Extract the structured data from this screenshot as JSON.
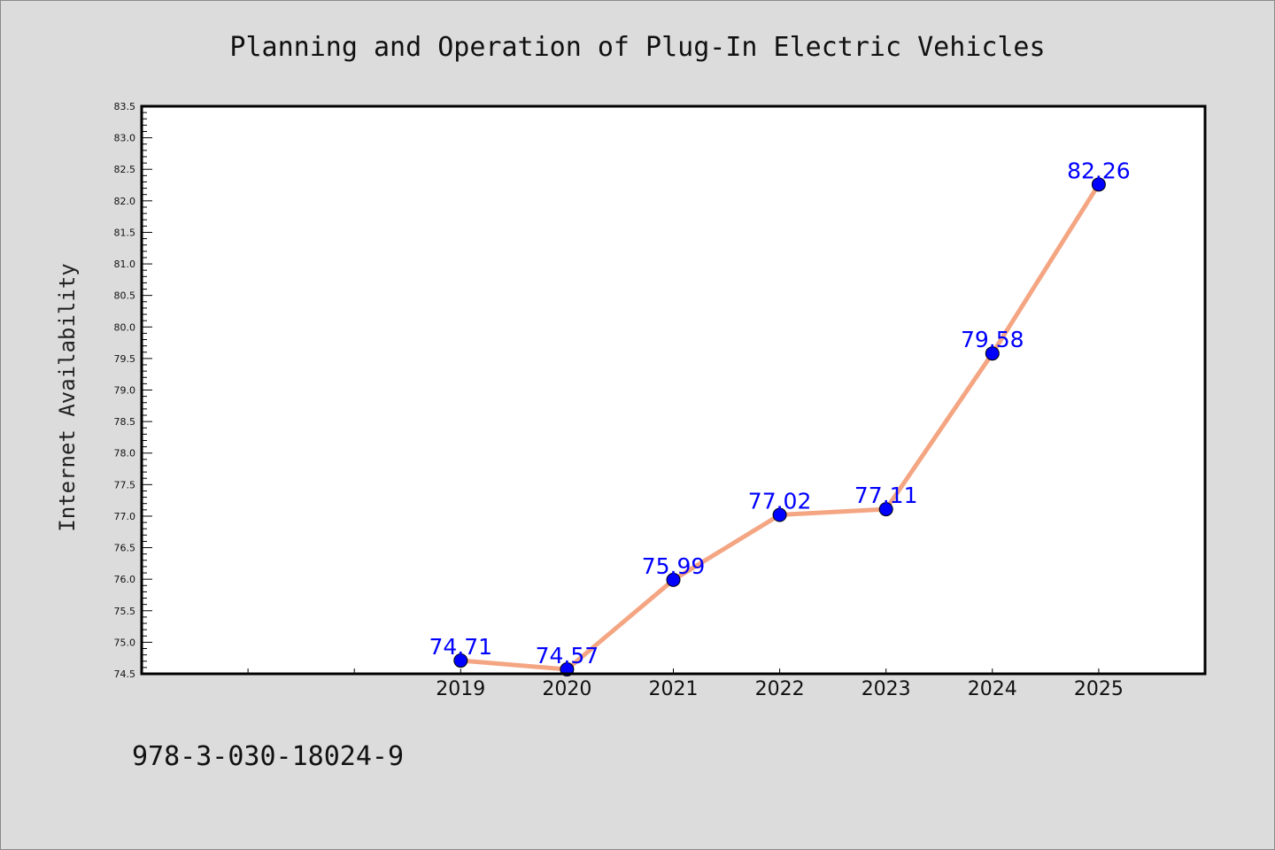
{
  "chart_data": {
    "type": "line",
    "title": "Planning and Operation of Plug-In Electric Vehicles",
    "xlabel": "",
    "ylabel": "Internet Availability",
    "x": [
      "2019",
      "2020",
      "2021",
      "2022",
      "2023",
      "2024",
      "2025"
    ],
    "x_numeric": [
      2019,
      2020,
      2021,
      2022,
      2023,
      2024,
      2025
    ],
    "xlim": [
      2016,
      2026
    ],
    "values": [
      74.71,
      74.57,
      75.99,
      77.02,
      77.11,
      79.58,
      82.26
    ],
    "data_labels": [
      "74.71",
      "74.57",
      "75.99",
      "77.02",
      "77.11",
      "79.58",
      "82.26"
    ],
    "ylim": [
      74.5,
      83.5
    ],
    "yticks": [
      "74.5",
      "75.0",
      "75.5",
      "76.0",
      "76.5",
      "77.0",
      "77.5",
      "78.0",
      "78.5",
      "79.0",
      "79.5",
      "80.0",
      "80.5",
      "81.0",
      "81.5",
      "82.0",
      "82.5",
      "83.0",
      "83.5"
    ],
    "grid": false,
    "line_color": "#f4a582",
    "marker_color": "#0000ff",
    "label_color": "#0000ff",
    "plot_background": "#ffffff",
    "figure_background": "#dcdcdc"
  },
  "footer": {
    "text": "978-3-030-18024-9"
  }
}
